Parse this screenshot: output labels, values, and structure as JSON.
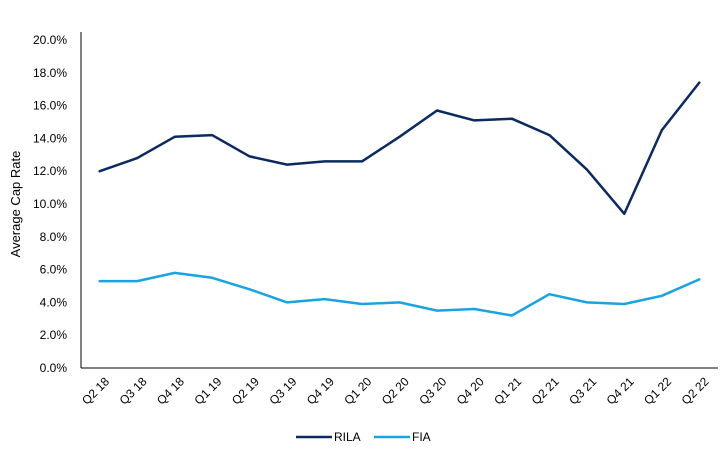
{
  "chart_data": {
    "type": "line",
    "title": "",
    "xlabel": "",
    "ylabel": "Average Cap Rate",
    "categories": [
      "Q2 18",
      "Q3 18",
      "Q4 18",
      "Q1 19",
      "Q2 19",
      "Q3 19",
      "Q4 19",
      "Q1 20",
      "Q2 20",
      "Q3 20",
      "Q4 20",
      "Q1 21",
      "Q2 21",
      "Q3 21",
      "Q4 21",
      "Q1 22",
      "Q2 22"
    ],
    "ylim": [
      0,
      20
    ],
    "yticks": [
      0,
      2,
      4,
      6,
      8,
      10,
      12,
      14,
      16,
      18,
      20
    ],
    "ytick_labels": [
      "0.0%",
      "2.0%",
      "4.0%",
      "6.0%",
      "8.0%",
      "10.0%",
      "12.0%",
      "14.0%",
      "16.0%",
      "18.0%",
      "20.0%"
    ],
    "grid": false,
    "legend_position": "bottom",
    "series": [
      {
        "name": "RILA",
        "color": "#0b2a5e",
        "values": [
          12.0,
          12.8,
          14.1,
          14.2,
          12.9,
          12.4,
          12.6,
          12.6,
          14.1,
          15.7,
          15.1,
          15.2,
          14.2,
          12.1,
          9.4,
          14.5,
          17.4
        ]
      },
      {
        "name": "FIA",
        "color": "#19a3e0",
        "values": [
          5.3,
          5.3,
          5.8,
          5.5,
          4.8,
          4.0,
          4.2,
          3.9,
          4.0,
          3.5,
          3.6,
          3.2,
          4.5,
          4.0,
          3.9,
          4.4,
          5.4
        ]
      }
    ]
  }
}
